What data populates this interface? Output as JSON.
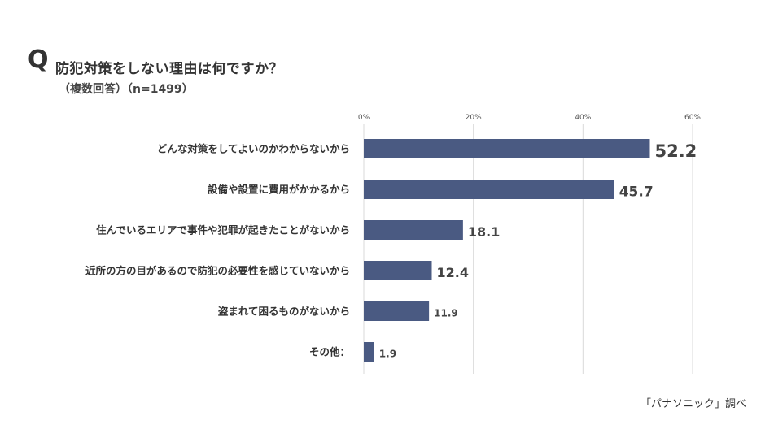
{
  "header": {
    "q_mark": "Q",
    "title": "防犯対策をしない理由は何ですか？",
    "subtitle": "（複数回答）（n=1499）"
  },
  "footer": {
    "source": "「パナソニック」調べ"
  },
  "colors": {
    "bar": "#4a5a82",
    "grid": "#d9d9d9",
    "text": "#333333"
  },
  "chart_data": {
    "type": "bar",
    "orientation": "horizontal",
    "categories": [
      "どんな対策をしてよいのかわからないから",
      "設備や設置に費用がかかるから",
      "住んでいるエリアで事件や犯罪が起きたことがないから",
      "近所の方の目があるので防犯の必要性を感じていないから",
      "盗まれて困るものがないから",
      "その他："
    ],
    "values": [
      52.2,
      45.7,
      18.1,
      12.4,
      11.9,
      1.9
    ],
    "value_labels": [
      "52.2",
      "45.7",
      "18.1",
      "12.4",
      "11.9",
      "1.9"
    ],
    "xlim": [
      0,
      60
    ],
    "xticks": [
      0,
      20,
      40,
      60
    ],
    "xtick_labels": [
      "0%",
      "20%",
      "40%",
      "60%"
    ],
    "grid": true,
    "xlabel": "",
    "ylabel": ""
  }
}
